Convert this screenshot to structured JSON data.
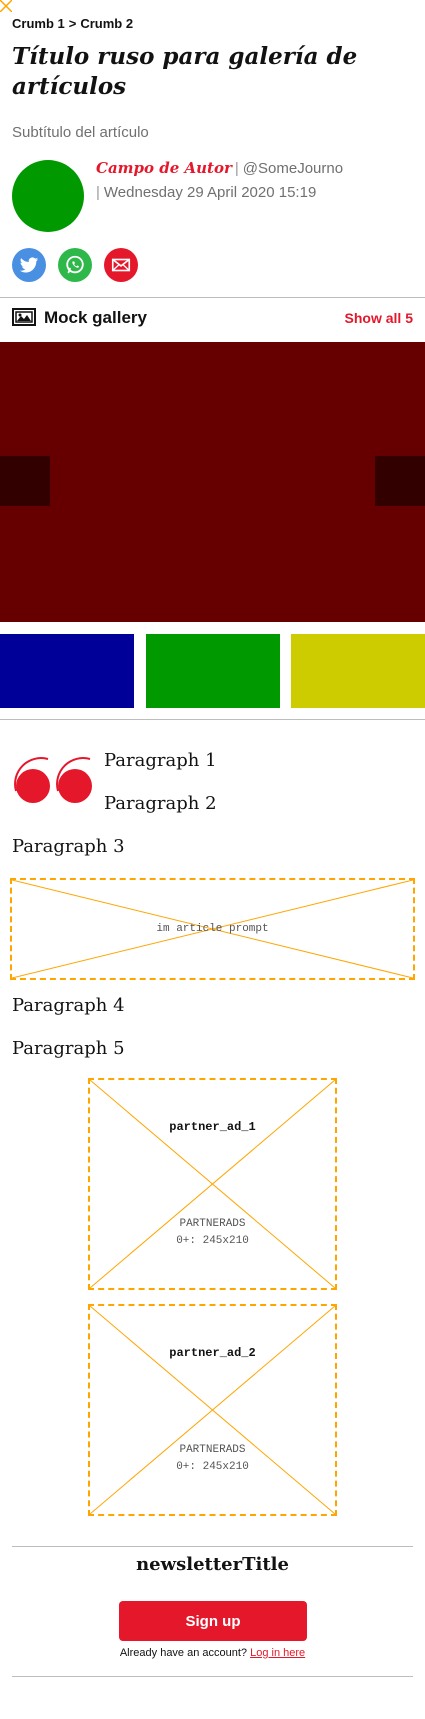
{
  "breadcrumb": {
    "items": [
      "Crumb 1",
      "Crumb 2"
    ],
    "separator": ">"
  },
  "article": {
    "title": "Título ruso para galería de artículos",
    "subtitle": "Subtítulo del artículo",
    "author": "Campo de Autor",
    "handle": "@SomeJourno",
    "date": "Wednesday 29 April 2020 15:19"
  },
  "share": {
    "icons": [
      "twitter-icon",
      "whatsapp-icon",
      "email-icon"
    ]
  },
  "gallery": {
    "title": "Mock gallery",
    "show_all": "Show all 5",
    "main_color": "#660000",
    "nav_color": "#330000",
    "thumb_colors": [
      "#000099",
      "#009900",
      "#cccc00"
    ]
  },
  "body": {
    "paragraphs": [
      "Paragraph 1",
      "Paragraph 2",
      "Paragraph 3",
      "Paragraph 4",
      "Paragraph 5"
    ],
    "prompt_label": "im article prompt"
  },
  "ads": [
    {
      "name": "partner_ad_1",
      "line1": "PARTNERADS",
      "line2": "0+: 245x210"
    },
    {
      "name": "partner_ad_2",
      "line1": "PARTNERADS",
      "line2": "0+: 245x210"
    }
  ],
  "newsletter": {
    "title": "newsletterTitle",
    "signup_label": "Sign up",
    "account_text": "Already have an account?",
    "login_link": "Log in here"
  },
  "colors": {
    "accent": "#e4172b",
    "placeholder_border": "#ffa500"
  }
}
